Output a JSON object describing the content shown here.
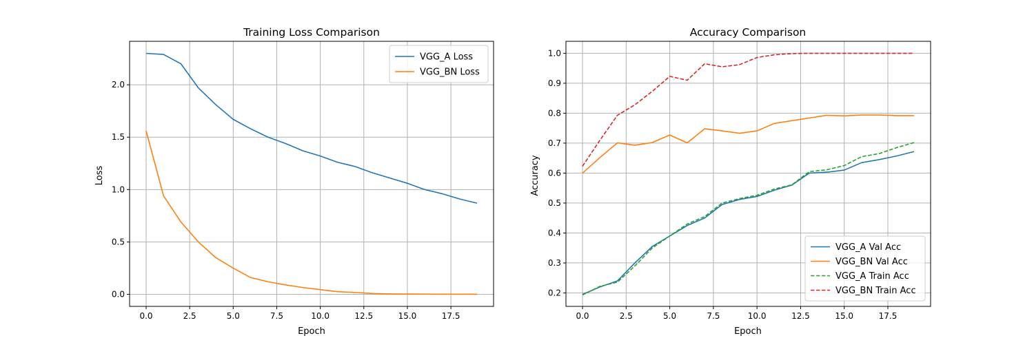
{
  "chart_data": [
    {
      "type": "line",
      "title": "Training Loss Comparison",
      "xlabel": "Epoch",
      "ylabel": "Loss",
      "xlim": [
        -0.95,
        19.95
      ],
      "ylim": [
        -0.115,
        2.415
      ],
      "xticks": [
        0,
        2.5,
        5,
        7.5,
        10,
        12.5,
        15,
        17.5
      ],
      "xtick_labels": [
        "0.0",
        "2.5",
        "5.0",
        "7.5",
        "10.0",
        "12.5",
        "15.0",
        "17.5"
      ],
      "yticks": [
        0,
        0.5,
        1.0,
        1.5,
        2.0
      ],
      "ytick_labels": [
        "0.0",
        "0.5",
        "1.0",
        "1.5",
        "2.0"
      ],
      "grid": true,
      "legend_position": "top-right",
      "x": [
        0,
        1,
        2,
        3,
        4,
        5,
        6,
        7,
        8,
        9,
        10,
        11,
        12,
        13,
        14,
        15,
        16,
        17,
        18,
        19
      ],
      "series": [
        {
          "name": "VGG_A Loss",
          "color": "#1f77b4",
          "dash": "solid",
          "values": [
            2.3,
            2.29,
            2.2,
            1.97,
            1.81,
            1.67,
            1.58,
            1.5,
            1.44,
            1.37,
            1.32,
            1.26,
            1.22,
            1.16,
            1.11,
            1.06,
            1.0,
            0.96,
            0.91,
            0.87
          ]
        },
        {
          "name": "VGG_BN Loss",
          "color": "#ff7f0e",
          "dash": "solid",
          "values": [
            1.56,
            0.94,
            0.69,
            0.5,
            0.35,
            0.25,
            0.16,
            0.12,
            0.09,
            0.065,
            0.045,
            0.025,
            0.018,
            0.008,
            0.004,
            0.003,
            0.002,
            0.001,
            0.001,
            0.001
          ]
        }
      ]
    },
    {
      "type": "line",
      "title": "Accuracy Comparison",
      "xlabel": "Epoch",
      "ylabel": "Accuracy",
      "xlim": [
        -0.95,
        19.95
      ],
      "ylim": [
        0.155,
        1.04
      ],
      "xticks": [
        0,
        2.5,
        5,
        7.5,
        10,
        12.5,
        15,
        17.5
      ],
      "xtick_labels": [
        "0.0",
        "2.5",
        "5.0",
        "7.5",
        "10.0",
        "12.5",
        "15.0",
        "17.5"
      ],
      "yticks": [
        0.2,
        0.3,
        0.4,
        0.5,
        0.6,
        0.7,
        0.8,
        0.9,
        1.0
      ],
      "ytick_labels": [
        "0.2",
        "0.3",
        "0.4",
        "0.5",
        "0.6",
        "0.7",
        "0.8",
        "0.9",
        "1.0"
      ],
      "grid": true,
      "legend_position": "bottom-right",
      "x": [
        0,
        1,
        2,
        3,
        4,
        5,
        6,
        7,
        8,
        9,
        10,
        11,
        12,
        13,
        14,
        15,
        16,
        17,
        18,
        19
      ],
      "series": [
        {
          "name": "VGG_A Val Acc",
          "color": "#1f77b4",
          "dash": "solid",
          "values": [
            0.195,
            0.22,
            0.24,
            0.3,
            0.355,
            0.39,
            0.425,
            0.45,
            0.495,
            0.512,
            0.522,
            0.543,
            0.56,
            0.6,
            0.603,
            0.61,
            0.635,
            0.645,
            0.657,
            0.672
          ]
        },
        {
          "name": "VGG_BN Val Acc",
          "color": "#ff7f0e",
          "dash": "solid",
          "values": [
            0.6,
            0.652,
            0.701,
            0.693,
            0.702,
            0.727,
            0.701,
            0.748,
            0.741,
            0.733,
            0.741,
            0.766,
            0.775,
            0.784,
            0.793,
            0.791,
            0.794,
            0.794,
            0.792,
            0.792
          ]
        },
        {
          "name": "VGG_A Train Acc",
          "color": "#2ca02c",
          "dash": "dashed",
          "values": [
            0.193,
            0.222,
            0.236,
            0.29,
            0.35,
            0.39,
            0.43,
            0.455,
            0.5,
            0.515,
            0.526,
            0.547,
            0.561,
            0.605,
            0.611,
            0.625,
            0.655,
            0.665,
            0.685,
            0.702
          ]
        },
        {
          "name": "VGG_BN Train Acc",
          "color": "#d62728",
          "dash": "dashed",
          "values": [
            0.623,
            0.71,
            0.793,
            0.828,
            0.873,
            0.923,
            0.91,
            0.965,
            0.955,
            0.962,
            0.986,
            0.995,
            0.999,
            1.0,
            1.0,
            1.0,
            1.0,
            1.0,
            1.0,
            1.0
          ]
        }
      ]
    }
  ]
}
